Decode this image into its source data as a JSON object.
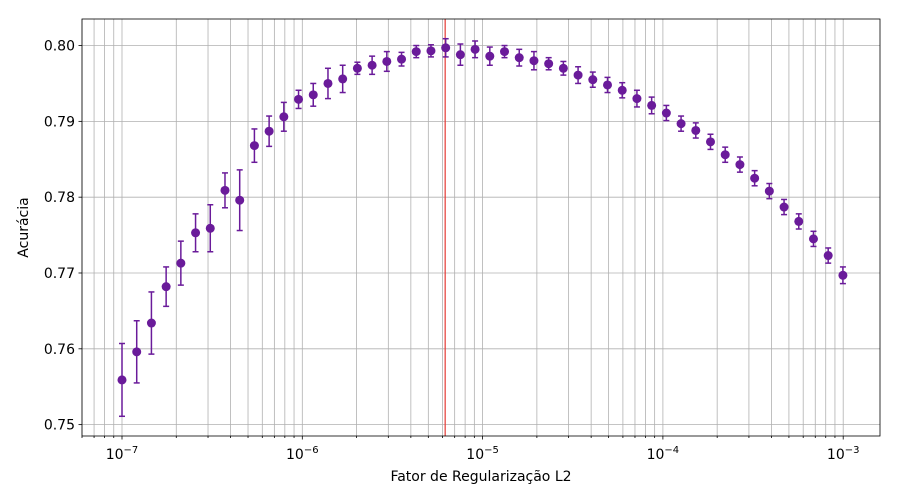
{
  "chart_data": {
    "type": "scatter",
    "xlabel": "Fator de Regularização L2",
    "ylabel": "Acurácia",
    "xscale": "log",
    "xlim": [
      6e-08,
      0.0016
    ],
    "ylim": [
      0.7485,
      0.8035
    ],
    "grid": true,
    "grid_minor_x": true,
    "x_ticks": [
      {
        "value": 1e-07,
        "label": "10−7"
      },
      {
        "value": 1e-06,
        "label": "10−6"
      },
      {
        "value": 1e-05,
        "label": "10−5"
      },
      {
        "value": 0.0001,
        "label": "10−4"
      },
      {
        "value": 0.001,
        "label": "10−3"
      }
    ],
    "y_ticks": [
      0.75,
      0.76,
      0.77,
      0.78,
      0.79,
      0.8
    ],
    "y_tick_labels": [
      "0.75",
      "0.76",
      "0.77",
      "0.78",
      "0.79",
      "0.80"
    ],
    "marker_color": "#6a1b9a",
    "vline_color": "#e53935",
    "vline_x": 6.2e-06,
    "x_exponent_start": -7,
    "x_exponent_step": 0.0816,
    "values": [
      0.7559,
      0.7596,
      0.7634,
      0.7682,
      0.7713,
      0.7753,
      0.7759,
      0.7809,
      0.7796,
      0.7868,
      0.7887,
      0.7906,
      0.7929,
      0.7935,
      0.795,
      0.7956,
      0.797,
      0.7974,
      0.7979,
      0.7982,
      0.7992,
      0.7993,
      0.7997,
      0.7988,
      0.7995,
      0.7986,
      0.7992,
      0.7984,
      0.798,
      0.7976,
      0.797,
      0.7961,
      0.7955,
      0.7948,
      0.7941,
      0.793,
      0.7921,
      0.7911,
      0.7897,
      0.7888,
      0.7873,
      0.7856,
      0.7843,
      0.7825,
      0.7808,
      0.7787,
      0.7768,
      0.7745,
      0.7723,
      0.7697
    ],
    "errors": [
      0.0048,
      0.0041,
      0.0041,
      0.0026,
      0.0029,
      0.0025,
      0.0031,
      0.0023,
      0.004,
      0.0022,
      0.002,
      0.0019,
      0.0012,
      0.0015,
      0.002,
      0.0018,
      0.0008,
      0.0012,
      0.0013,
      0.0009,
      0.0008,
      0.0008,
      0.0012,
      0.0014,
      0.0011,
      0.0012,
      0.0008,
      0.0011,
      0.0012,
      0.0008,
      0.0009,
      0.0011,
      0.001,
      0.001,
      0.001,
      0.0011,
      0.0011,
      0.001,
      0.001,
      0.001,
      0.001,
      0.001,
      0.001,
      0.001,
      0.001,
      0.001,
      0.001,
      0.001,
      0.001,
      0.0011
    ]
  }
}
